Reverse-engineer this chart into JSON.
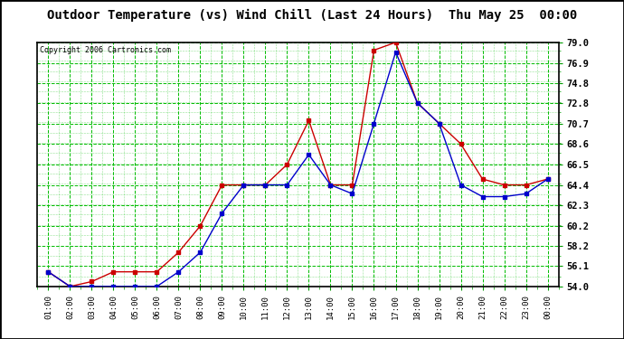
{
  "title": "Outdoor Temperature (vs) Wind Chill (Last 24 Hours)  Thu May 25  00:00",
  "copyright": "Copyright 2006 Cartronics.com",
  "x_labels": [
    "01:00",
    "02:00",
    "03:00",
    "04:00",
    "05:00",
    "06:00",
    "07:00",
    "08:00",
    "09:00",
    "10:00",
    "11:00",
    "12:00",
    "13:00",
    "14:00",
    "15:00",
    "16:00",
    "17:00",
    "18:00",
    "19:00",
    "20:00",
    "21:00",
    "22:00",
    "23:00",
    "00:00"
  ],
  "y_min": 54.0,
  "y_max": 79.0,
  "y_ticks": [
    54.0,
    56.1,
    58.2,
    60.2,
    62.3,
    64.4,
    66.5,
    68.6,
    70.7,
    72.8,
    74.8,
    76.9,
    79.0
  ],
  "temp_red": [
    55.5,
    54.0,
    54.5,
    55.5,
    55.5,
    55.5,
    57.5,
    60.2,
    64.4,
    64.4,
    64.4,
    66.5,
    71.0,
    64.4,
    64.4,
    78.2,
    79.0,
    72.8,
    70.7,
    68.6,
    65.0,
    64.4,
    64.4,
    65.0
  ],
  "temp_blue": [
    55.5,
    54.0,
    54.0,
    54.0,
    54.0,
    54.0,
    55.5,
    57.5,
    61.5,
    64.4,
    64.4,
    64.4,
    67.5,
    64.4,
    63.5,
    70.7,
    78.0,
    72.8,
    70.7,
    64.4,
    63.2,
    63.2,
    63.5,
    65.0
  ],
  "bg_color": "#ffffff",
  "plot_bg_color": "#ffffff",
  "grid_color": "#00bb00",
  "line_color_red": "#cc0000",
  "line_color_blue": "#0000cc",
  "title_color": "#000000",
  "border_color": "#000000"
}
